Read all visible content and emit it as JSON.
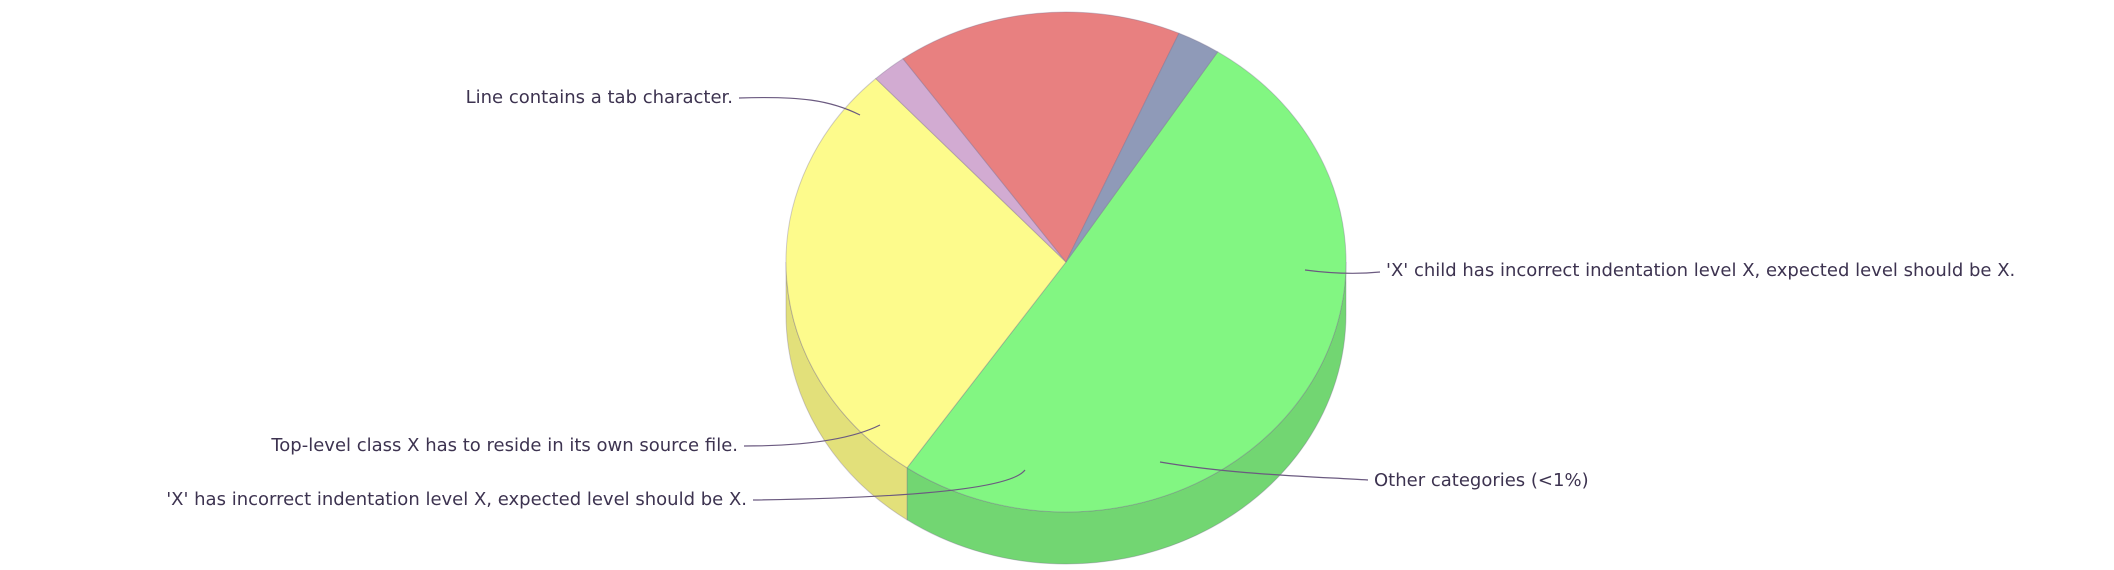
{
  "chart_data": {
    "type": "pie",
    "title": "",
    "style": "3d-cylinder",
    "legend": "none",
    "slices": [
      {
        "label": "Line contains a tab character.",
        "value": 50.5,
        "color": "#82f682",
        "side_color": "#72d672"
      },
      {
        "label": "'X' child has incorrect indentation level X, expected level should be X.",
        "value": 28.5,
        "color": "#fdfb8c",
        "side_color": "#e2e07a"
      },
      {
        "label": "Other categories (<1%)",
        "value": 2.0,
        "color": "#d2abd2",
        "side_color": "#c298c2"
      },
      {
        "label": "'X' has incorrect indentation level X, expected level should be X.",
        "value": 16.5,
        "color": "#e88080",
        "side_color": "#d76f6f"
      },
      {
        "label": "Top-level class X has to reside in its own source file.",
        "value": 2.5,
        "color": "#8f9ab8",
        "side_color": "#7d88a6"
      }
    ],
    "label_line_color": "#6b5a80",
    "text_color": "#3d3350"
  }
}
